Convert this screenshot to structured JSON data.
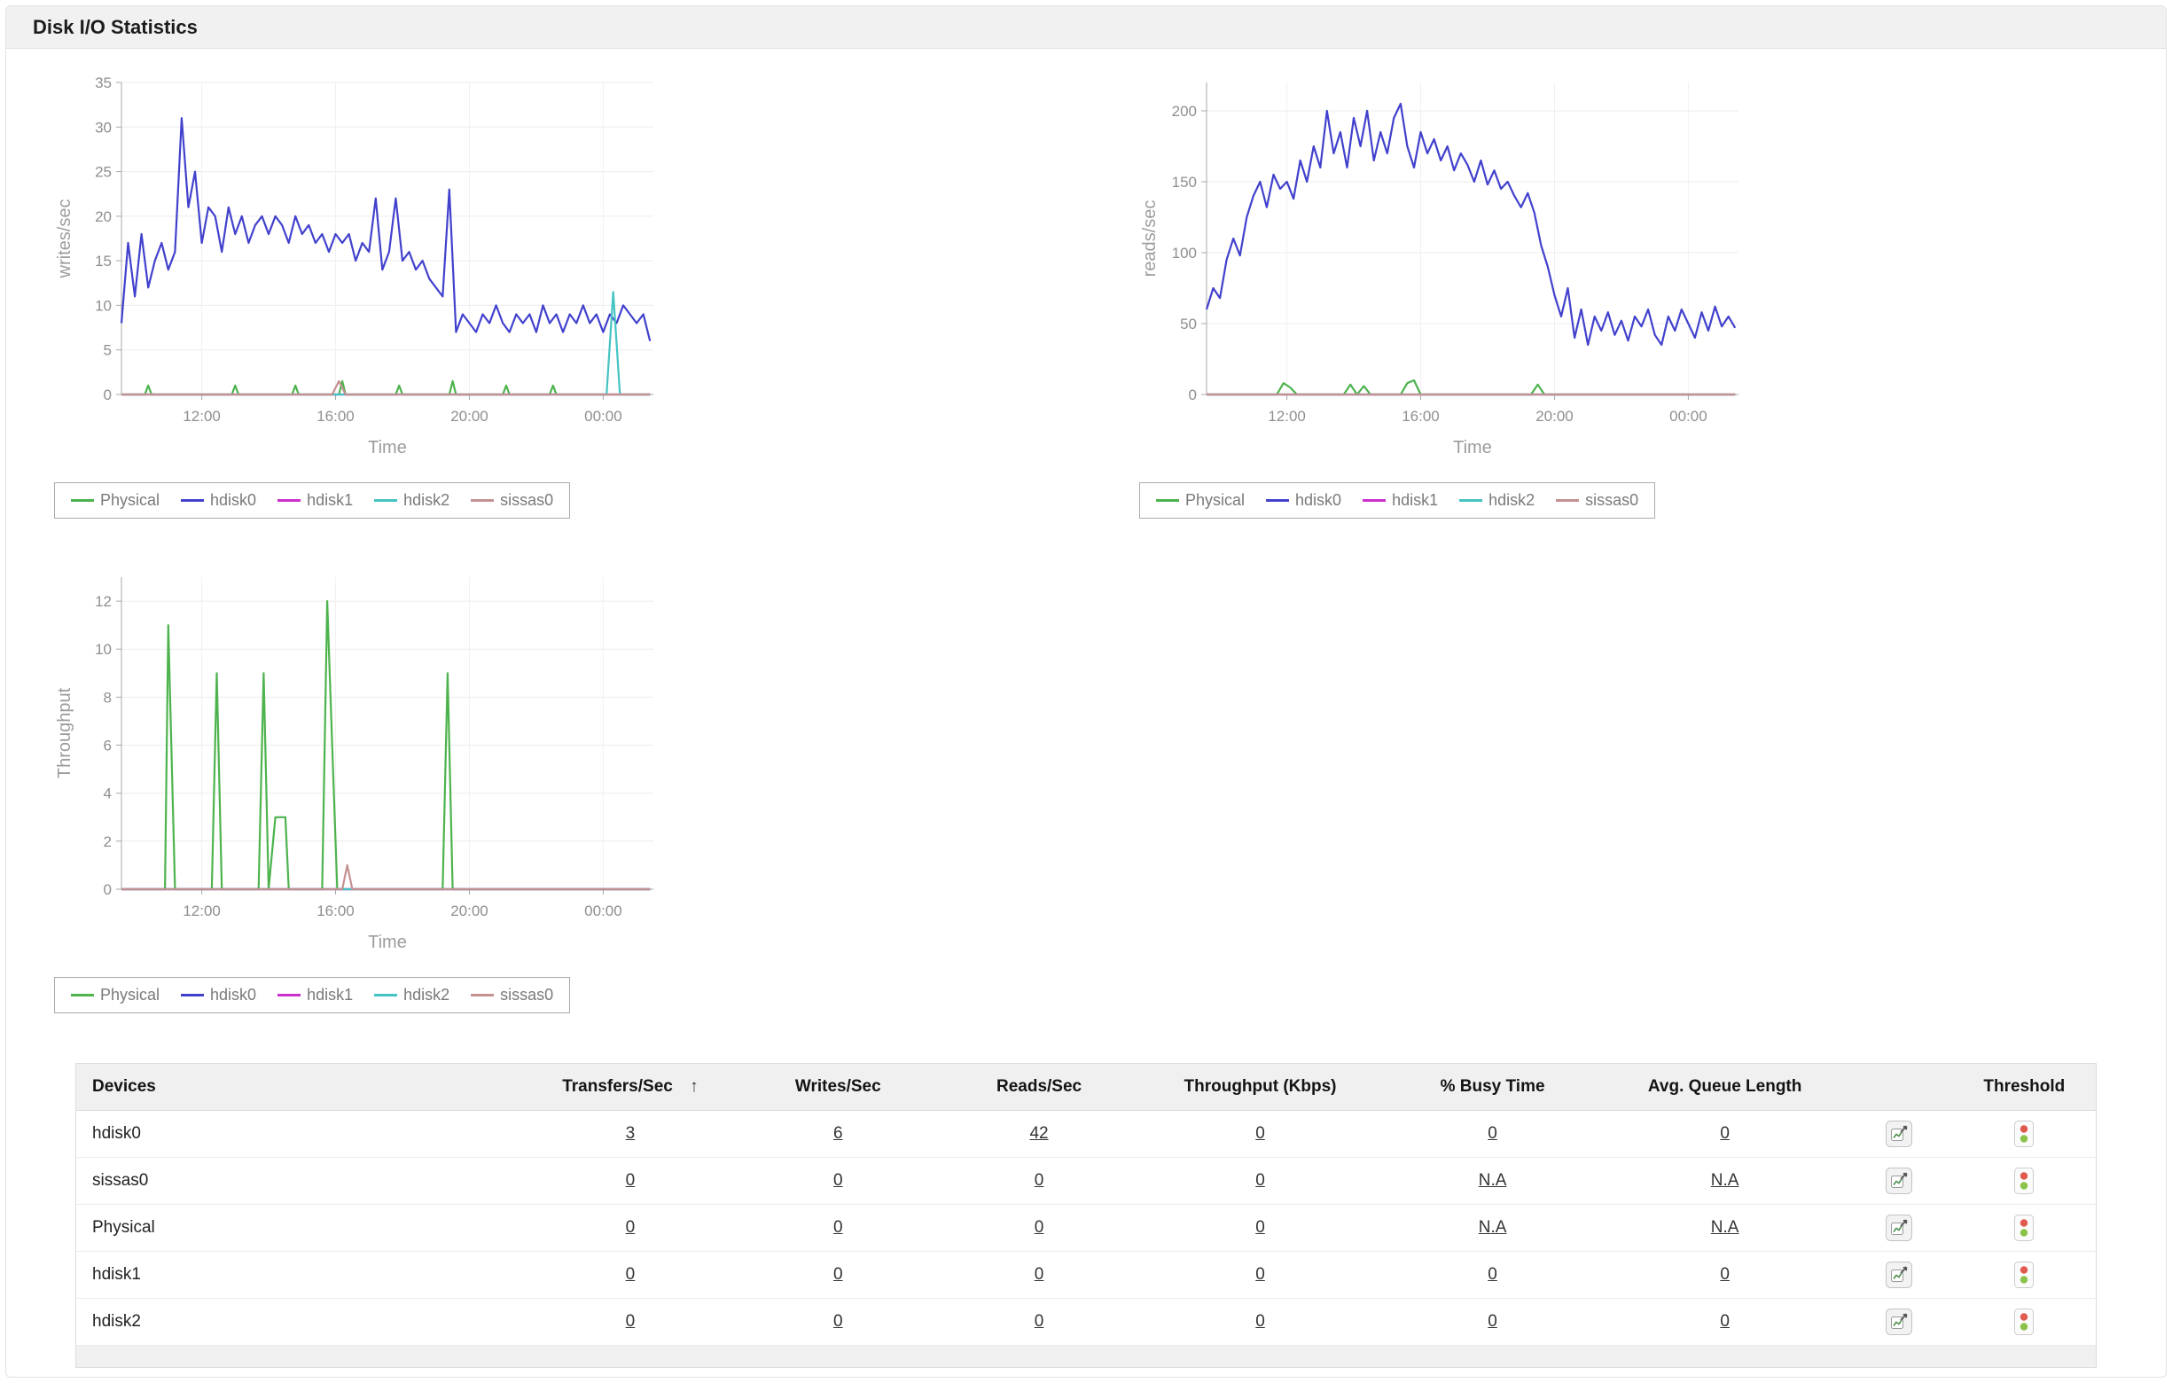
{
  "header": {
    "title": "Disk I/O Statistics"
  },
  "colors": {
    "Physical": "#4db34d",
    "hdisk0": "#4141cd",
    "hdisk1": "#cc2fcc",
    "hdisk2": "#45c3c3",
    "sissas0": "#c49191",
    "threshold_red": "#e05a50",
    "threshold_green": "#8bc34a"
  },
  "legend": {
    "items": [
      "Physical",
      "hdisk0",
      "hdisk1",
      "hdisk2",
      "sissas0"
    ]
  },
  "chart_data": [
    {
      "type": "line",
      "title": "",
      "ylabel": "writes/sec",
      "xlabel": "Time",
      "ylim": [
        0,
        35
      ],
      "yticks": [
        0,
        5,
        10,
        15,
        20,
        25,
        30,
        35
      ],
      "xlim": [
        9.6,
        25.5
      ],
      "xticks": [
        {
          "v": 12,
          "label": "12:00"
        },
        {
          "v": 16,
          "label": "16:00"
        },
        {
          "v": 20,
          "label": "20:00"
        },
        {
          "v": 24,
          "label": "00:00"
        }
      ],
      "x_start": 9.6,
      "x_step": 0.2,
      "series": [
        {
          "name": "Physical",
          "points": [
            [
              9.6,
              0
            ],
            [
              10.3,
              0
            ],
            [
              10.4,
              1
            ],
            [
              10.5,
              0
            ],
            [
              12.9,
              0
            ],
            [
              13.0,
              1
            ],
            [
              13.1,
              0
            ],
            [
              14.7,
              0
            ],
            [
              14.8,
              1
            ],
            [
              14.9,
              0
            ],
            [
              16.1,
              0
            ],
            [
              16.2,
              1.5
            ],
            [
              16.3,
              0
            ],
            [
              17.8,
              0
            ],
            [
              17.9,
              1
            ],
            [
              18.0,
              0
            ],
            [
              19.4,
              0
            ],
            [
              19.5,
              1.5
            ],
            [
              19.6,
              0
            ],
            [
              21.0,
              0
            ],
            [
              21.1,
              1
            ],
            [
              21.2,
              0
            ],
            [
              22.4,
              0
            ],
            [
              22.5,
              1
            ],
            [
              22.6,
              0
            ],
            [
              25.4,
              0
            ]
          ]
        },
        {
          "name": "hdisk0",
          "values": [
            8,
            17,
            11,
            18,
            12,
            15,
            17,
            14,
            16,
            31,
            21,
            25,
            17,
            21,
            20,
            16,
            21,
            18,
            20,
            17,
            19,
            20,
            18,
            20,
            19,
            17,
            20,
            18,
            19,
            17,
            18,
            16,
            18,
            17,
            18,
            15,
            17,
            16,
            22,
            14,
            16,
            22,
            15,
            16,
            14,
            15,
            13,
            12,
            11,
            23,
            7,
            9,
            8,
            7,
            9,
            8,
            10,
            8,
            7,
            9,
            8,
            9,
            7,
            10,
            8,
            9,
            7,
            9,
            8,
            10,
            8,
            9,
            7,
            9,
            8,
            10,
            9,
            8,
            9,
            6
          ]
        },
        {
          "name": "hdisk1",
          "points": [
            [
              9.6,
              0
            ],
            [
              25.4,
              0
            ]
          ]
        },
        {
          "name": "hdisk2",
          "points": [
            [
              9.6,
              0
            ],
            [
              24.1,
              0
            ],
            [
              24.3,
              11.5
            ],
            [
              24.5,
              0
            ],
            [
              25.4,
              0
            ]
          ]
        },
        {
          "name": "sissas0",
          "points": [
            [
              9.6,
              0
            ],
            [
              15.9,
              0
            ],
            [
              16.1,
              1.5
            ],
            [
              16.3,
              0
            ],
            [
              25.4,
              0
            ]
          ]
        }
      ]
    },
    {
      "type": "line",
      "title": "",
      "ylabel": "reads/sec",
      "xlabel": "Time",
      "ylim": [
        0,
        220
      ],
      "yticks": [
        0,
        50,
        100,
        150,
        200
      ],
      "xlim": [
        9.6,
        25.5
      ],
      "xticks": [
        {
          "v": 12,
          "label": "12:00"
        },
        {
          "v": 16,
          "label": "16:00"
        },
        {
          "v": 20,
          "label": "20:00"
        },
        {
          "v": 24,
          "label": "00:00"
        }
      ],
      "x_start": 9.6,
      "x_step": 0.2,
      "series": [
        {
          "name": "Physical",
          "points": [
            [
              9.6,
              0
            ],
            [
              11.7,
              0
            ],
            [
              11.9,
              8
            ],
            [
              12.1,
              5
            ],
            [
              12.3,
              0
            ],
            [
              13.7,
              0
            ],
            [
              13.9,
              7
            ],
            [
              14.1,
              0
            ],
            [
              14.3,
              6
            ],
            [
              14.5,
              0
            ],
            [
              15.4,
              0
            ],
            [
              15.6,
              8
            ],
            [
              15.8,
              10
            ],
            [
              16.0,
              0
            ],
            [
              19.3,
              0
            ],
            [
              19.5,
              7
            ],
            [
              19.7,
              0
            ],
            [
              25.4,
              0
            ]
          ]
        },
        {
          "name": "hdisk0",
          "values": [
            60,
            75,
            68,
            95,
            110,
            98,
            125,
            140,
            150,
            132,
            155,
            145,
            150,
            138,
            165,
            150,
            175,
            160,
            200,
            170,
            185,
            160,
            195,
            175,
            200,
            165,
            185,
            170,
            195,
            205,
            175,
            160,
            185,
            170,
            180,
            165,
            175,
            158,
            170,
            162,
            150,
            165,
            148,
            158,
            145,
            150,
            140,
            132,
            142,
            128,
            105,
            90,
            70,
            55,
            75,
            40,
            60,
            35,
            55,
            45,
            58,
            42,
            52,
            38,
            55,
            48,
            60,
            42,
            35,
            55,
            45,
            60,
            50,
            40,
            58,
            45,
            62,
            48,
            55,
            47
          ]
        },
        {
          "name": "hdisk1",
          "points": [
            [
              9.6,
              0
            ],
            [
              25.4,
              0
            ]
          ]
        },
        {
          "name": "hdisk2",
          "points": [
            [
              9.6,
              0
            ],
            [
              25.4,
              0
            ]
          ]
        },
        {
          "name": "sissas0",
          "points": [
            [
              9.6,
              0
            ],
            [
              25.4,
              0
            ]
          ]
        }
      ]
    },
    {
      "type": "line",
      "title": "",
      "ylabel": "Throughput",
      "xlabel": "Time",
      "ylim": [
        0,
        13
      ],
      "yticks": [
        0,
        2,
        4,
        6,
        8,
        10,
        12
      ],
      "xlim": [
        9.6,
        25.5
      ],
      "xticks": [
        {
          "v": 12,
          "label": "12:00"
        },
        {
          "v": 16,
          "label": "16:00"
        },
        {
          "v": 20,
          "label": "20:00"
        },
        {
          "v": 24,
          "label": "00:00"
        }
      ],
      "x_start": 9.6,
      "x_step": 0.2,
      "series": [
        {
          "name": "Physical",
          "points": [
            [
              9.6,
              0
            ],
            [
              10.9,
              0
            ],
            [
              11.0,
              11
            ],
            [
              11.2,
              0
            ],
            [
              12.3,
              0
            ],
            [
              12.45,
              9
            ],
            [
              12.6,
              0
            ],
            [
              13.7,
              0
            ],
            [
              13.85,
              9
            ],
            [
              14.0,
              0
            ],
            [
              14.2,
              3
            ],
            [
              14.5,
              3
            ],
            [
              14.6,
              0
            ],
            [
              15.6,
              0
            ],
            [
              15.75,
              12
            ],
            [
              15.9,
              6
            ],
            [
              16.05,
              0
            ],
            [
              19.2,
              0
            ],
            [
              19.35,
              9
            ],
            [
              19.5,
              0
            ],
            [
              25.4,
              0
            ]
          ]
        },
        {
          "name": "hdisk0",
          "points": [
            [
              9.6,
              0
            ],
            [
              25.4,
              0
            ]
          ]
        },
        {
          "name": "hdisk1",
          "points": [
            [
              9.6,
              0
            ],
            [
              25.4,
              0
            ]
          ]
        },
        {
          "name": "hdisk2",
          "points": [
            [
              9.6,
              0
            ],
            [
              25.4,
              0
            ]
          ]
        },
        {
          "name": "sissas0",
          "points": [
            [
              9.6,
              0
            ],
            [
              16.2,
              0
            ],
            [
              16.35,
              1
            ],
            [
              16.5,
              0
            ],
            [
              25.4,
              0
            ]
          ]
        }
      ]
    }
  ],
  "table": {
    "columns": [
      {
        "label": "Devices",
        "align": "left"
      },
      {
        "label": "Transfers/Sec",
        "sort_indicator": "↑"
      },
      {
        "label": "Writes/Sec"
      },
      {
        "label": "Reads/Sec"
      },
      {
        "label": "Throughput (Kbps)"
      },
      {
        "label": "% Busy Time"
      },
      {
        "label": "Avg. Queue Length"
      },
      {
        "label": ""
      },
      {
        "label": "Threshold"
      }
    ],
    "rows": [
      {
        "device": "hdisk0",
        "values": [
          "3",
          "6",
          "42",
          "0",
          "0",
          "0"
        ]
      },
      {
        "device": "sissas0",
        "values": [
          "0",
          "0",
          "0",
          "0",
          "N.A",
          "N.A"
        ]
      },
      {
        "device": "Physical",
        "values": [
          "0",
          "0",
          "0",
          "0",
          "N.A",
          "N.A"
        ]
      },
      {
        "device": "hdisk1",
        "values": [
          "0",
          "0",
          "0",
          "0",
          "0",
          "0"
        ]
      },
      {
        "device": "hdisk2",
        "values": [
          "0",
          "0",
          "0",
          "0",
          "0",
          "0"
        ]
      }
    ],
    "icons": {
      "history": "history-chart-icon",
      "threshold": "threshold-status-icon"
    }
  }
}
